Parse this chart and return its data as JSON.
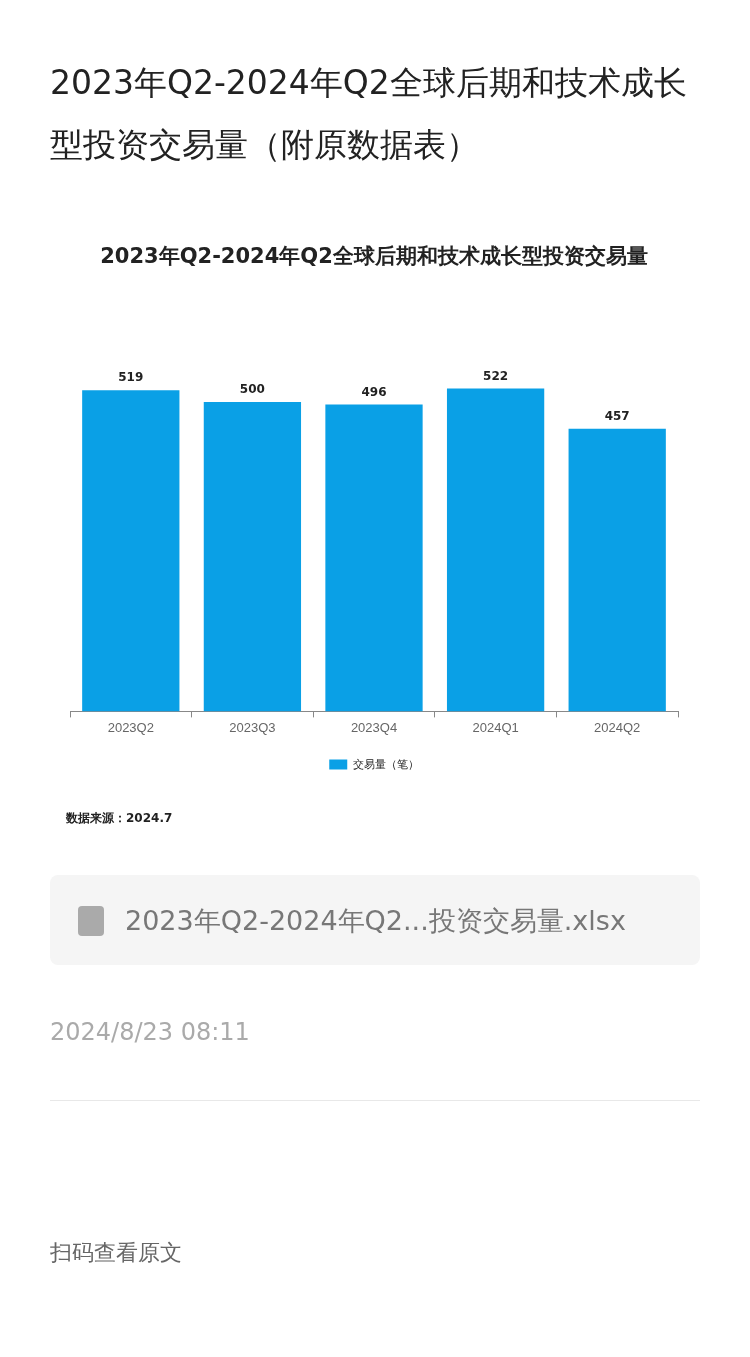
{
  "chart_data": {
    "type": "bar",
    "title": "2023年Q2-2024年Q2全球后期和技术成长型投资交易量（附原数据表）",
    "subtitle": "2023年Q2-2024年Q2全球后期和技术成长型投资交易量",
    "categories": [
      "2023Q2",
      "2023Q3",
      "2023Q4",
      "2024Q1",
      "2024Q2"
    ],
    "series": [
      {
        "name": "交易量（笔）",
        "color": "#0aa0e6",
        "values": [
          519,
          500,
          496,
          522,
          457
        ]
      }
    ],
    "data_labels": true,
    "legend": "bottom",
    "annotations": [
      "数据来源：2024.7",
      "2023年Q2-2024年Q2...投资交易量.xlsx",
      "2024/8/23 08:11",
      "扫码查看原文"
    ]
  }
}
